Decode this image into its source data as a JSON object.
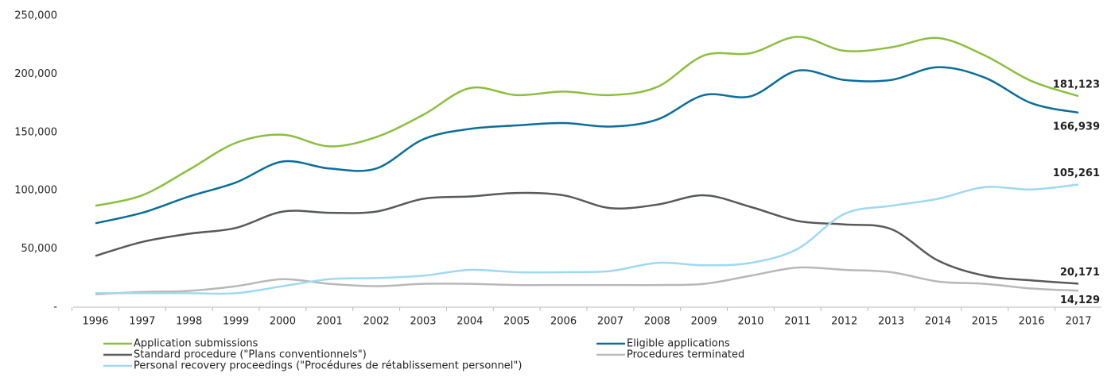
{
  "chart_data": {
    "type": "line",
    "x": [
      "1996",
      "1997",
      "1998",
      "1999",
      "2000",
      "2001",
      "2002",
      "2003",
      "2004",
      "2005",
      "2006",
      "2007",
      "2008",
      "2009",
      "2010",
      "2011",
      "2012",
      "2013",
      "2014",
      "2015",
      "2016",
      "2017"
    ],
    "ylim": [
      0,
      250000
    ],
    "yticks": [
      {
        "value": 0,
        "label": "-"
      },
      {
        "value": 50000,
        "label": "50,000"
      },
      {
        "value": 100000,
        "label": "100,000"
      },
      {
        "value": 150000,
        "label": "150,000"
      },
      {
        "value": 200000,
        "label": "200,000"
      },
      {
        "value": 250000,
        "label": "250,000"
      }
    ],
    "grid": false,
    "legend": "bottom",
    "series": [
      {
        "name": "Application submissions",
        "color": "#8cbf3f",
        "values": [
          87000,
          96000,
          118000,
          141000,
          148000,
          138000,
          146000,
          165000,
          188000,
          182000,
          185000,
          182000,
          189000,
          216000,
          218000,
          232000,
          220000,
          223000,
          231000,
          216000,
          194000,
          181123
        ],
        "value_labels": [
          null,
          null,
          null,
          null,
          null,
          null,
          null,
          null,
          null,
          null,
          null,
          null,
          null,
          null,
          null,
          null,
          null,
          null,
          null,
          null,
          null,
          "181,123"
        ]
      },
      {
        "name": "Eligible applications",
        "color": "#0a6e9a",
        "values": [
          72000,
          81000,
          95000,
          107000,
          125000,
          119000,
          119000,
          144000,
          153000,
          156000,
          158000,
          155000,
          161000,
          182000,
          181000,
          203000,
          195000,
          195000,
          206000,
          197000,
          175000,
          166939
        ],
        "value_labels": [
          null,
          null,
          null,
          null,
          null,
          null,
          null,
          null,
          null,
          null,
          null,
          null,
          null,
          null,
          null,
          null,
          null,
          null,
          null,
          null,
          null,
          "166,939"
        ]
      },
      {
        "name": "Standard procedure (\"Plans conventionnels\")",
        "color": "#58595b",
        "values": [
          44000,
          56000,
          63000,
          68000,
          82000,
          81000,
          82000,
          93000,
          95000,
          98000,
          96000,
          85000,
          88000,
          96000,
          86000,
          74000,
          71000,
          67000,
          40000,
          27000,
          23000,
          20171
        ],
        "value_labels": [
          null,
          null,
          null,
          null,
          null,
          null,
          null,
          null,
          null,
          null,
          null,
          null,
          null,
          null,
          null,
          null,
          null,
          null,
          null,
          null,
          null,
          "20,171"
        ]
      },
      {
        "name": "Procedures terminated",
        "color": "#b8b8b8",
        "values": [
          11000,
          13000,
          14000,
          18000,
          24000,
          20000,
          18000,
          20000,
          20000,
          19000,
          19000,
          19000,
          19000,
          20000,
          27000,
          34000,
          32000,
          30000,
          22000,
          20000,
          16000,
          14129
        ],
        "value_labels": [
          null,
          null,
          null,
          null,
          null,
          null,
          null,
          null,
          null,
          null,
          null,
          null,
          null,
          null,
          null,
          null,
          null,
          null,
          null,
          null,
          null,
          "14,129"
        ]
      },
      {
        "name": "Personal recovery proceedings (\"Procédures de rétablissement personnel\")",
        "color": "#9fd8f2",
        "values": [
          12000,
          12000,
          12000,
          12000,
          18000,
          24000,
          25000,
          27000,
          32000,
          30000,
          30000,
          31000,
          38000,
          36000,
          38000,
          50000,
          80000,
          87000,
          93000,
          103000,
          101000,
          105261
        ],
        "value_labels": [
          null,
          null,
          null,
          null,
          null,
          null,
          null,
          null,
          null,
          null,
          null,
          null,
          null,
          null,
          null,
          null,
          null,
          null,
          null,
          null,
          null,
          "105,261"
        ]
      }
    ]
  }
}
